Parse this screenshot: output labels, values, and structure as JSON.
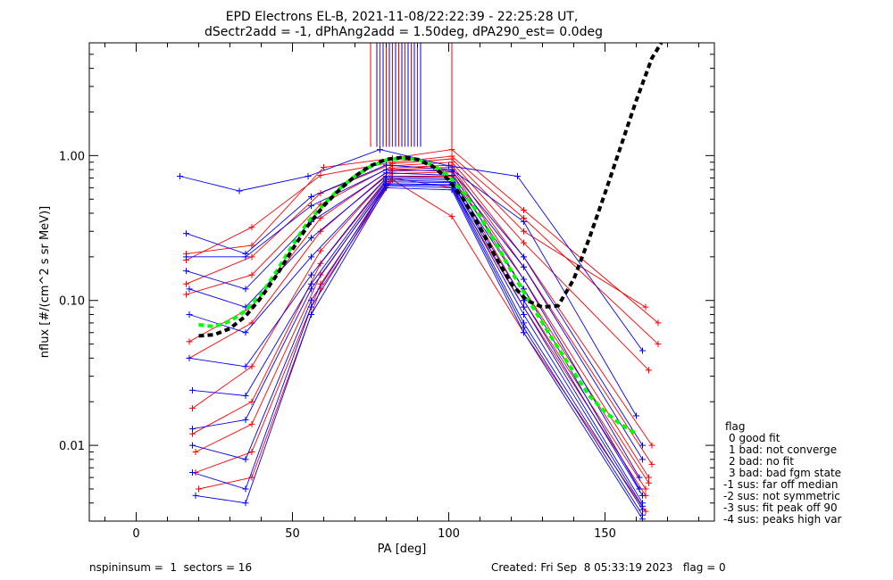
{
  "chart_data": {
    "type": "line",
    "title_line1": "EPD Electrons EL-B, 2021-11-08/22:22:39 - 22:25:28 UT,",
    "title_line2": "dSectr2add = -1, dPhAng2add = 1.50deg, dPA290_est=   0.0deg",
    "xlabel": "PA [deg]",
    "ylabel": "nflux [#/(cm^2 s sr MeV)]",
    "xlim": [
      -15,
      185
    ],
    "ylim": [
      0.003,
      6.0
    ],
    "y_scale": "log",
    "x_ticks": [
      0,
      50,
      100,
      150
    ],
    "x_tick_labels": [
      "0",
      "50",
      "100",
      "150"
    ],
    "y_ticks": [
      0.01,
      0.1,
      1.0
    ],
    "y_tick_labels": [
      "0.01",
      "0.10",
      "1.00"
    ],
    "series_colors": {
      "red": "#ff0000",
      "blue": "#0000ff",
      "green": "#00ff00",
      "black": "#000000"
    },
    "green_fit": {
      "x": [
        20,
        25,
        30,
        35,
        40,
        45,
        50,
        55,
        60,
        65,
        70,
        75,
        80,
        85,
        90,
        95,
        100,
        105,
        110,
        115,
        120,
        125,
        130,
        135,
        140,
        145,
        150,
        155,
        160
      ],
      "y": [
        0.068,
        0.066,
        0.072,
        0.085,
        0.11,
        0.16,
        0.24,
        0.35,
        0.46,
        0.59,
        0.72,
        0.84,
        0.93,
        0.96,
        0.94,
        0.86,
        0.72,
        0.55,
        0.38,
        0.25,
        0.16,
        0.105,
        0.07,
        0.047,
        0.032,
        0.022,
        0.017,
        0.014,
        0.012
      ]
    },
    "black_fit": {
      "x": [
        20,
        25,
        30,
        35,
        40,
        45,
        50,
        55,
        60,
        65,
        70,
        75,
        80,
        85,
        90,
        95,
        100,
        105,
        110,
        115,
        120,
        125,
        130,
        135,
        140,
        145,
        150,
        155,
        160,
        165,
        168
      ],
      "y": [
        0.057,
        0.058,
        0.064,
        0.078,
        0.105,
        0.15,
        0.225,
        0.33,
        0.45,
        0.58,
        0.72,
        0.85,
        0.94,
        0.97,
        0.94,
        0.84,
        0.68,
        0.49,
        0.32,
        0.2,
        0.13,
        0.1,
        0.09,
        0.092,
        0.14,
        0.27,
        0.55,
        1.15,
        2.4,
        4.7,
        6.0
      ]
    },
    "blue_sample_curves": [
      {
        "x": [
          14,
          33,
          55,
          78,
          100,
          122,
          162
        ],
        "y": [
          0.72,
          0.57,
          0.72,
          1.1,
          0.85,
          0.72,
          0.045
        ]
      },
      {
        "x": [
          16,
          35,
          56,
          80,
          101,
          124,
          160
        ],
        "y": [
          0.29,
          0.21,
          0.52,
          0.86,
          0.8,
          0.35,
          0.016
        ]
      },
      {
        "x": [
          16,
          35,
          56,
          80,
          101,
          124,
          162
        ],
        "y": [
          0.2,
          0.2,
          0.45,
          0.8,
          0.78,
          0.2,
          0.01
        ]
      },
      {
        "x": [
          16,
          35,
          56,
          80,
          101,
          124,
          162
        ],
        "y": [
          0.16,
          0.12,
          0.35,
          0.76,
          0.73,
          0.17,
          0.008
        ]
      },
      {
        "x": [
          17,
          35,
          56,
          80,
          101,
          124,
          161
        ],
        "y": [
          0.12,
          0.09,
          0.27,
          0.72,
          0.7,
          0.14,
          0.006
        ]
      },
      {
        "x": [
          17,
          35,
          56,
          80,
          101,
          124,
          161
        ],
        "y": [
          0.08,
          0.06,
          0.2,
          0.7,
          0.68,
          0.12,
          0.005
        ]
      },
      {
        "x": [
          17,
          35,
          56,
          80,
          101,
          124,
          162
        ],
        "y": [
          0.04,
          0.035,
          0.15,
          0.68,
          0.66,
          0.1,
          0.0045
        ]
      },
      {
        "x": [
          18,
          35,
          56,
          80,
          101,
          124,
          162
        ],
        "y": [
          0.024,
          0.022,
          0.13,
          0.66,
          0.65,
          0.09,
          0.004
        ]
      },
      {
        "x": [
          18,
          35,
          56,
          80,
          101,
          124,
          162
        ],
        "y": [
          0.013,
          0.015,
          0.12,
          0.64,
          0.63,
          0.08,
          0.0038
        ]
      },
      {
        "x": [
          18,
          35,
          56,
          80,
          101,
          124,
          162
        ],
        "y": [
          0.01,
          0.008,
          0.1,
          0.63,
          0.62,
          0.07,
          0.0036
        ]
      },
      {
        "x": [
          18,
          35,
          56,
          80,
          101,
          124,
          162
        ],
        "y": [
          0.0065,
          0.005,
          0.09,
          0.62,
          0.6,
          0.065,
          0.0033
        ]
      },
      {
        "x": [
          19,
          35,
          56,
          80,
          101,
          124,
          162
        ],
        "y": [
          0.0045,
          0.004,
          0.08,
          0.6,
          0.58,
          0.06,
          0.0031
        ]
      }
    ],
    "red_sample_curves": [
      {
        "x": [
          16,
          37,
          60,
          82,
          101,
          124,
          167
        ],
        "y": [
          0.21,
          0.24,
          0.83,
          0.96,
          1.1,
          0.42,
          0.07
        ]
      },
      {
        "x": [
          16,
          37,
          59,
          82,
          101,
          124,
          167
        ],
        "y": [
          0.19,
          0.32,
          0.73,
          0.9,
          0.99,
          0.37,
          0.05
        ]
      },
      {
        "x": [
          16,
          37,
          59,
          82,
          101,
          124,
          163
        ],
        "y": [
          0.13,
          0.2,
          0.55,
          0.88,
          0.95,
          0.3,
          0.09
        ]
      },
      {
        "x": [
          16,
          37,
          59,
          82,
          101,
          124,
          164
        ],
        "y": [
          0.11,
          0.15,
          0.46,
          0.85,
          0.9,
          0.25,
          0.033
        ]
      },
      {
        "x": [
          17,
          37,
          59,
          82,
          101,
          124,
          165
        ],
        "y": [
          0.052,
          0.09,
          0.37,
          0.82,
          0.86,
          0.2,
          0.01
        ]
      },
      {
        "x": [
          17,
          37,
          59,
          82,
          101,
          124,
          165
        ],
        "y": [
          0.04,
          0.07,
          0.3,
          0.8,
          0.83,
          0.17,
          0.0074
        ]
      },
      {
        "x": [
          18,
          37,
          59,
          82,
          101,
          124,
          164
        ],
        "y": [
          0.018,
          0.035,
          0.22,
          0.78,
          0.8,
          0.14,
          0.006
        ]
      },
      {
        "x": [
          18,
          37,
          59,
          82,
          101,
          124,
          164
        ],
        "y": [
          0.012,
          0.02,
          0.18,
          0.75,
          0.77,
          0.12,
          0.0055
        ]
      },
      {
        "x": [
          19,
          37,
          59,
          82,
          101,
          124,
          163
        ],
        "y": [
          0.009,
          0.014,
          0.15,
          0.72,
          0.72,
          0.1,
          0.005
        ]
      },
      {
        "x": [
          19,
          37,
          59,
          82,
          101,
          124,
          163
        ],
        "y": [
          0.0065,
          0.009,
          0.13,
          0.7,
          0.6,
          0.09,
          0.0045
        ]
      },
      {
        "x": [
          20,
          37,
          59,
          82,
          101,
          124,
          163
        ],
        "y": [
          0.005,
          0.006,
          0.12,
          0.68,
          0.38,
          0.06,
          0.0035
        ]
      }
    ],
    "vertical_lines_red": [
      75,
      78,
      80,
      82,
      84,
      86,
      88,
      90,
      101
    ],
    "vertical_lines_blue": [
      77,
      79,
      81,
      83,
      85,
      87,
      89,
      91
    ],
    "vertical_lines_bottom_y": 1.15
  },
  "legend": {
    "title": "flag",
    "items": [
      "0 good fit",
      "1 bad: not converge",
      "2 bad: no fit",
      "3 bad: bad fgm state",
      "-1 sus: far off median",
      "-2 sus: not symmetric",
      "-3 sus: fit peak off 90",
      "-4 sus: peaks high var"
    ]
  },
  "footer": {
    "left": "nspininsum =  1  sectors = 16",
    "right": "Created: Fri Sep  8 05:33:19 2023   flag = 0"
  }
}
